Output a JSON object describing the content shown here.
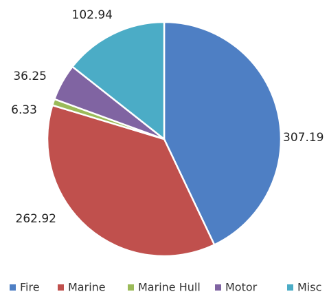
{
  "chart_data": {
    "type": "pie",
    "categories": [
      "Fire",
      "Marine",
      "Marine Hull",
      "Motor",
      "Misc"
    ],
    "values": [
      307.19,
      262.92,
      6.33,
      36.25,
      102.94
    ],
    "colors": [
      "#4e7fc4",
      "#c0504d",
      "#9bbb59",
      "#8064a2",
      "#4bacc6"
    ],
    "legend": "bottom"
  }
}
